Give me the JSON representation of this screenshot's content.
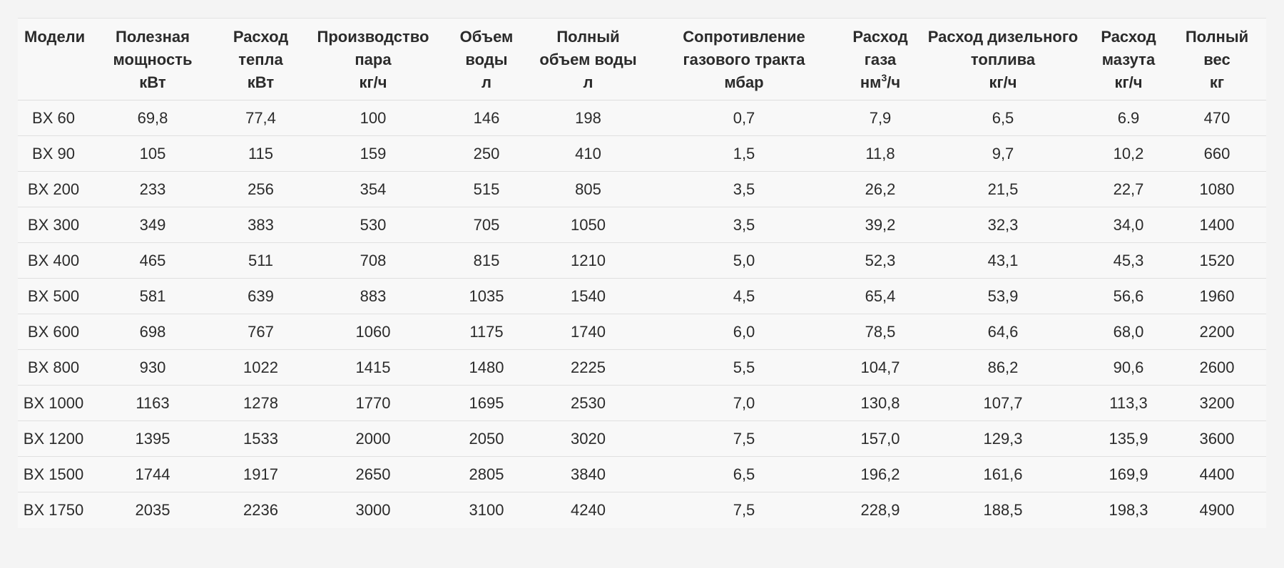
{
  "table": {
    "headers": [
      {
        "lines": [
          "Модели"
        ]
      },
      {
        "lines": [
          "Полезная",
          "мощность",
          "кВт"
        ]
      },
      {
        "lines": [
          "Расход",
          "тепла",
          "кВт"
        ]
      },
      {
        "lines": [
          "Производство",
          "пара",
          "кг/ч"
        ]
      },
      {
        "lines": [
          "Объем",
          "воды",
          "л"
        ]
      },
      {
        "lines": [
          "Полный",
          "объем воды",
          "л"
        ]
      },
      {
        "lines": [
          "Сопротивление",
          "газового тракта",
          "мбар"
        ]
      },
      {
        "lines": [
          "Расход",
          "газа"
        ],
        "unit_prefix": "нм",
        "unit_sup": "3",
        "unit_suffix": "/ч"
      },
      {
        "lines": [
          "Расход дизельного",
          "топлива",
          "кг/ч"
        ]
      },
      {
        "lines": [
          "Расход",
          "мазута",
          "кг/ч"
        ]
      },
      {
        "lines": [
          "Полный",
          "вес",
          "кг"
        ]
      }
    ],
    "rows": [
      [
        "BX 60",
        "69,8",
        "77,4",
        "100",
        "146",
        "198",
        "0,7",
        "7,9",
        "6,5",
        "6.9",
        "470"
      ],
      [
        "BX 90",
        "105",
        "115",
        "159",
        "250",
        "410",
        "1,5",
        "11,8",
        "9,7",
        "10,2",
        "660"
      ],
      [
        "BX 200",
        "233",
        "256",
        "354",
        "515",
        "805",
        "3,5",
        "26,2",
        "21,5",
        "22,7",
        "1080"
      ],
      [
        "BX 300",
        "349",
        "383",
        "530",
        "705",
        "1050",
        "3,5",
        "39,2",
        "32,3",
        "34,0",
        "1400"
      ],
      [
        "BX 400",
        "465",
        "511",
        "708",
        "815",
        "1210",
        "5,0",
        "52,3",
        "43,1",
        "45,3",
        "1520"
      ],
      [
        "BX 500",
        "581",
        "639",
        "883",
        "1035",
        "1540",
        "4,5",
        "65,4",
        "53,9",
        "56,6",
        "1960"
      ],
      [
        "BX 600",
        "698",
        "767",
        "1060",
        "1175",
        "1740",
        "6,0",
        "78,5",
        "64,6",
        "68,0",
        "2200"
      ],
      [
        "BX 800",
        "930",
        "1022",
        "1415",
        "1480",
        "2225",
        "5,5",
        "104,7",
        "86,2",
        "90,6",
        "2600"
      ],
      [
        "BX 1000",
        "1163",
        "1278",
        "1770",
        "1695",
        "2530",
        "7,0",
        "130,8",
        "107,7",
        "113,3",
        "3200"
      ],
      [
        "BX 1200",
        "1395",
        "1533",
        "2000",
        "2050",
        "3020",
        "7,5",
        "157,0",
        "129,3",
        "135,9",
        "3600"
      ],
      [
        "BX 1500",
        "1744",
        "1917",
        "2650",
        "2805",
        "3840",
        "6,5",
        "196,2",
        "161,6",
        "169,9",
        "4400"
      ],
      [
        "BX 1750",
        "2035",
        "2236",
        "3000",
        "3100",
        "4240",
        "7,5",
        "228,9",
        "188,5",
        "198,3",
        "4900"
      ]
    ]
  }
}
